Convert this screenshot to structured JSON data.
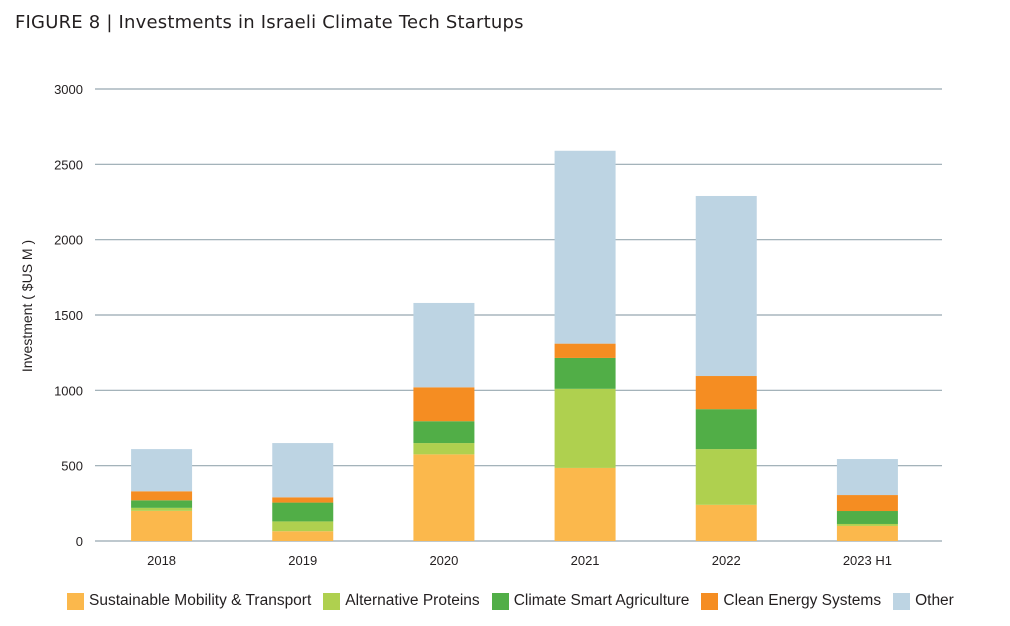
{
  "figure": {
    "title": "FIGURE 8 |  Investments in Israeli Climate Tech Startups"
  },
  "chart_data": {
    "type": "bar",
    "stacked": true,
    "title": "Investments in Israeli Climate Tech Startups",
    "figure_label": "FIGURE 8",
    "xlabel": "",
    "ylabel": "Investment ( $US M )",
    "ylim": [
      0,
      3000
    ],
    "yticks": [
      0,
      500,
      1000,
      1500,
      2000,
      2500,
      3000
    ],
    "grid": true,
    "legend_position": "bottom",
    "categories": [
      "2018",
      "2019",
      "2020",
      "2021",
      "2022",
      "2023 H1"
    ],
    "series": [
      {
        "name": "Sustainable Mobility & Transport",
        "color": "#fbb84c",
        "values": [
          200,
          65,
          575,
          485,
          240,
          100
        ]
      },
      {
        "name": "Alternative Proteins",
        "color": "#afd04f",
        "values": [
          20,
          65,
          75,
          525,
          370,
          13
        ]
      },
      {
        "name": "Climate Smart Agriculture",
        "color": "#51ae47",
        "values": [
          50,
          125,
          145,
          205,
          265,
          86
        ]
      },
      {
        "name": "Clean Energy Systems",
        "color": "#f58d22",
        "values": [
          60,
          35,
          225,
          95,
          220,
          106
        ]
      },
      {
        "name": "Other",
        "color": "#bdd4e3",
        "values": [
          280,
          360,
          560,
          1280,
          1195,
          239
        ]
      }
    ]
  }
}
